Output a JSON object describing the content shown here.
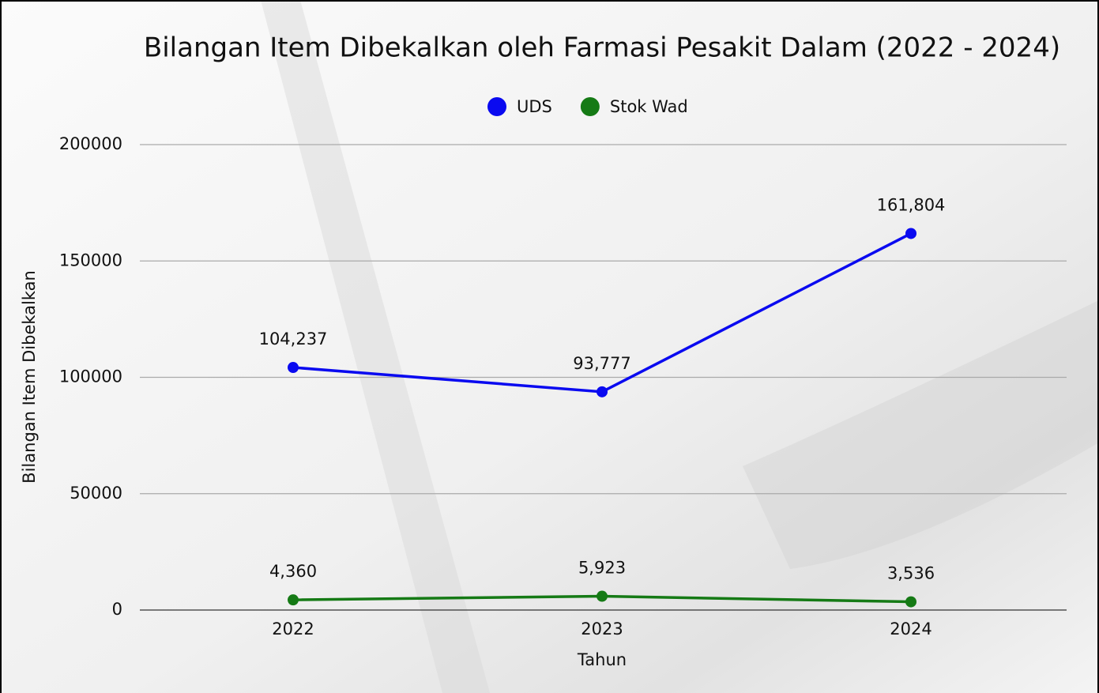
{
  "chart_data": {
    "type": "line",
    "title": "Bilangan Item Dibekalkan oleh Farmasi Pesakit Dalam (2022 - 2024)",
    "x_label": "Tahun",
    "y_label": "Bilangan Item Dibekalkan",
    "categories": [
      "2022",
      "2023",
      "2024"
    ],
    "series": [
      {
        "name": "UDS",
        "color": "#0a0af0",
        "values": [
          104237,
          93777,
          161804
        ],
        "value_labels": [
          "104,237",
          "93,777",
          "161,804"
        ]
      },
      {
        "name": "Stok Wad",
        "color": "#157a15",
        "values": [
          4360,
          5923,
          3536
        ],
        "value_labels": [
          "4,360",
          "5,923",
          "3,536"
        ]
      }
    ],
    "ylim": [
      0,
      200000
    ],
    "yticks": [
      0,
      50000,
      100000,
      150000,
      200000
    ],
    "grid": true,
    "legend": "top"
  }
}
